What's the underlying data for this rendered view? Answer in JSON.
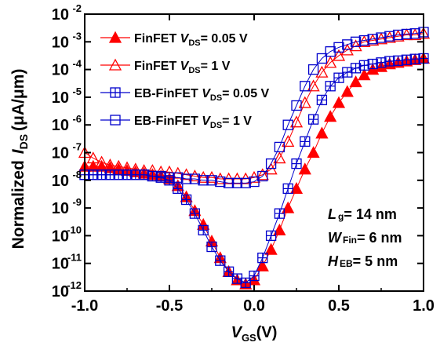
{
  "chart_data": {
    "type": "scatter",
    "xlabel_main": "V",
    "xlabel_sub": "GS",
    "xlabel_tail": "(V)",
    "ylabel_pre": "Normalized",
    "ylabel_main": "I",
    "ylabel_sub": "DS",
    "ylabel_tail": "(μA/μm)",
    "xlim": [
      -1.0,
      1.0
    ],
    "ylim_log10": [
      -12,
      -2
    ],
    "y_scale": "log",
    "x_ticks": [
      "-1.0",
      "-0.5",
      "0.0",
      "0.5",
      "1.0"
    ],
    "y_tick_exponents": [
      "-12",
      "-11",
      "-10",
      "-9",
      "-8",
      "-7",
      "-6",
      "-5",
      "-4",
      "-3",
      "-2"
    ],
    "y_tick_base": "10",
    "legend_position": "top-left",
    "colors": {
      "red": "#ff0000",
      "blue": "#0000cc"
    },
    "series": [
      {
        "name_pre": "FinFET ",
        "name_var": "V",
        "name_sub": "DS",
        "name_val": "= 0.05 V",
        "color": "#ff0000",
        "marker": "triangle-filled",
        "x": [
          -1.0,
          -0.95,
          -0.9,
          -0.85,
          -0.8,
          -0.75,
          -0.7,
          -0.65,
          -0.6,
          -0.55,
          -0.5,
          -0.45,
          -0.4,
          -0.35,
          -0.3,
          -0.25,
          -0.2,
          -0.15,
          -0.1,
          -0.05,
          0.0,
          0.05,
          0.1,
          0.15,
          0.2,
          0.25,
          0.3,
          0.35,
          0.4,
          0.45,
          0.5,
          0.55,
          0.6,
          0.65,
          0.7,
          0.75,
          0.8,
          0.85,
          0.9,
          0.95,
          1.0
        ],
        "y_log10": [
          -7.5,
          -7.5,
          -7.5,
          -7.55,
          -7.6,
          -7.65,
          -7.7,
          -7.75,
          -7.8,
          -7.85,
          -7.95,
          -8.2,
          -8.6,
          -9.1,
          -9.6,
          -10.2,
          -10.8,
          -11.3,
          -11.6,
          -11.75,
          -11.6,
          -11.1,
          -10.5,
          -9.8,
          -9.0,
          -8.3,
          -7.6,
          -7.0,
          -6.3,
          -5.7,
          -5.2,
          -4.8,
          -4.45,
          -4.2,
          -4.0,
          -3.9,
          -3.8,
          -3.75,
          -3.7,
          -3.65,
          -3.6
        ]
      },
      {
        "name_pre": "FinFET ",
        "name_var": "V",
        "name_sub": "DS",
        "name_val": "= 1 V",
        "color": "#ff0000",
        "marker": "triangle-open",
        "x": [
          -1.0,
          -0.95,
          -0.9,
          -0.85,
          -0.8,
          -0.75,
          -0.7,
          -0.65,
          -0.6,
          -0.55,
          -0.5,
          -0.45,
          -0.4,
          -0.35,
          -0.3,
          -0.25,
          -0.2,
          -0.15,
          -0.1,
          -0.05,
          0.0,
          0.05,
          0.1,
          0.15,
          0.2,
          0.25,
          0.3,
          0.35,
          0.4,
          0.45,
          0.5,
          0.55,
          0.6,
          0.65,
          0.7,
          0.75,
          0.8,
          0.85,
          0.9,
          0.95,
          1.0
        ],
        "y_log10": [
          -7.0,
          -7.2,
          -7.35,
          -7.45,
          -7.5,
          -7.55,
          -7.6,
          -7.65,
          -7.65,
          -7.7,
          -7.7,
          -7.75,
          -7.8,
          -7.85,
          -7.9,
          -7.9,
          -7.95,
          -7.95,
          -7.95,
          -7.95,
          -7.9,
          -7.8,
          -7.6,
          -7.2,
          -6.6,
          -5.9,
          -5.2,
          -4.6,
          -4.1,
          -3.75,
          -3.5,
          -3.3,
          -3.15,
          -3.0,
          -2.95,
          -2.9,
          -2.85,
          -2.8,
          -2.75,
          -2.75,
          -2.7
        ]
      },
      {
        "name_pre": "EB-FinFET ",
        "name_var": "V",
        "name_sub": "DS",
        "name_val": "= 0.05 V",
        "color": "#0000cc",
        "marker": "square-plus",
        "x": [
          -1.0,
          -0.95,
          -0.9,
          -0.85,
          -0.8,
          -0.75,
          -0.7,
          -0.65,
          -0.6,
          -0.55,
          -0.5,
          -0.45,
          -0.4,
          -0.35,
          -0.3,
          -0.25,
          -0.2,
          -0.15,
          -0.1,
          -0.05,
          0.0,
          0.05,
          0.1,
          0.15,
          0.2,
          0.25,
          0.3,
          0.35,
          0.4,
          0.45,
          0.5,
          0.55,
          0.6,
          0.65,
          0.7,
          0.75,
          0.8,
          0.85,
          0.9,
          0.95,
          1.0
        ],
        "y_log10": [
          -7.8,
          -7.8,
          -7.8,
          -7.8,
          -7.8,
          -7.8,
          -7.8,
          -7.8,
          -7.85,
          -7.9,
          -8.0,
          -8.3,
          -8.7,
          -9.2,
          -9.8,
          -10.4,
          -10.9,
          -11.3,
          -11.55,
          -11.7,
          -11.45,
          -10.8,
          -10.0,
          -9.2,
          -8.3,
          -7.4,
          -6.6,
          -5.8,
          -5.1,
          -4.6,
          -4.3,
          -4.1,
          -3.95,
          -3.85,
          -3.8,
          -3.75,
          -3.7,
          -3.68,
          -3.65,
          -3.62,
          -3.6
        ]
      },
      {
        "name_pre": "EB-FinFET ",
        "name_var": "V",
        "name_sub": "DS",
        "name_val": "= 1 V",
        "color": "#0000cc",
        "marker": "square-open",
        "x": [
          -1.0,
          -0.95,
          -0.9,
          -0.85,
          -0.8,
          -0.75,
          -0.7,
          -0.65,
          -0.6,
          -0.55,
          -0.5,
          -0.45,
          -0.4,
          -0.35,
          -0.3,
          -0.25,
          -0.2,
          -0.15,
          -0.1,
          -0.05,
          0.0,
          0.05,
          0.1,
          0.15,
          0.2,
          0.25,
          0.3,
          0.35,
          0.4,
          0.45,
          0.5,
          0.55,
          0.6,
          0.65,
          0.7,
          0.75,
          0.8,
          0.85,
          0.9,
          0.95,
          1.0
        ],
        "y_log10": [
          -7.8,
          -7.8,
          -7.8,
          -7.8,
          -7.8,
          -7.8,
          -7.8,
          -7.8,
          -7.85,
          -7.85,
          -7.9,
          -7.9,
          -7.95,
          -7.95,
          -8.0,
          -8.0,
          -8.05,
          -8.1,
          -8.1,
          -8.1,
          -8.05,
          -7.85,
          -7.4,
          -6.8,
          -6.0,
          -5.3,
          -4.6,
          -4.0,
          -3.6,
          -3.35,
          -3.2,
          -3.1,
          -3.0,
          -2.95,
          -2.9,
          -2.85,
          -2.8,
          -2.75,
          -2.72,
          -2.7,
          -2.65
        ]
      }
    ],
    "annotations": [
      {
        "var": "L",
        "sub": "g",
        "val": "= 14 nm"
      },
      {
        "var": "W",
        "sub": "Fin",
        "val": "= 6 nm"
      },
      {
        "var": "H",
        "sub": "EB",
        "val": "= 5 nm"
      }
    ]
  }
}
